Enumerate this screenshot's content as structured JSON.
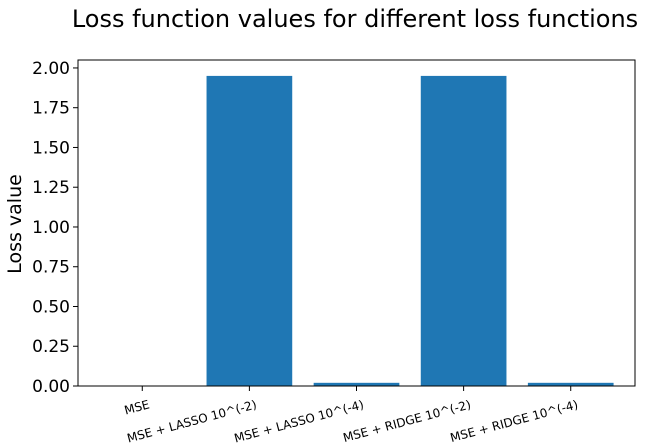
{
  "chart_data": {
    "type": "bar",
    "title": "Loss function values for different loss functions",
    "ylabel": "Loss value",
    "xlabel": "",
    "categories": [
      "MSE",
      "MSE + LASSO 10^(-2)",
      "MSE + LASSO 10^(-4)",
      "MSE + RIDGE 10^(-2)",
      "MSE + RIDGE 10^(-4)"
    ],
    "values": [
      0.0,
      1.95,
      0.02,
      1.95,
      0.02
    ],
    "ylim": [
      0,
      2.05
    ],
    "yticks": [
      0.0,
      0.25,
      0.5,
      0.75,
      1.0,
      1.25,
      1.5,
      1.75,
      2.0
    ],
    "ytick_labels": [
      "0.00",
      "0.25",
      "0.50",
      "0.75",
      "1.00",
      "1.25",
      "1.50",
      "1.75",
      "2.00"
    ],
    "bar_color": "#1f77b4",
    "grid": false,
    "legend": "none"
  }
}
